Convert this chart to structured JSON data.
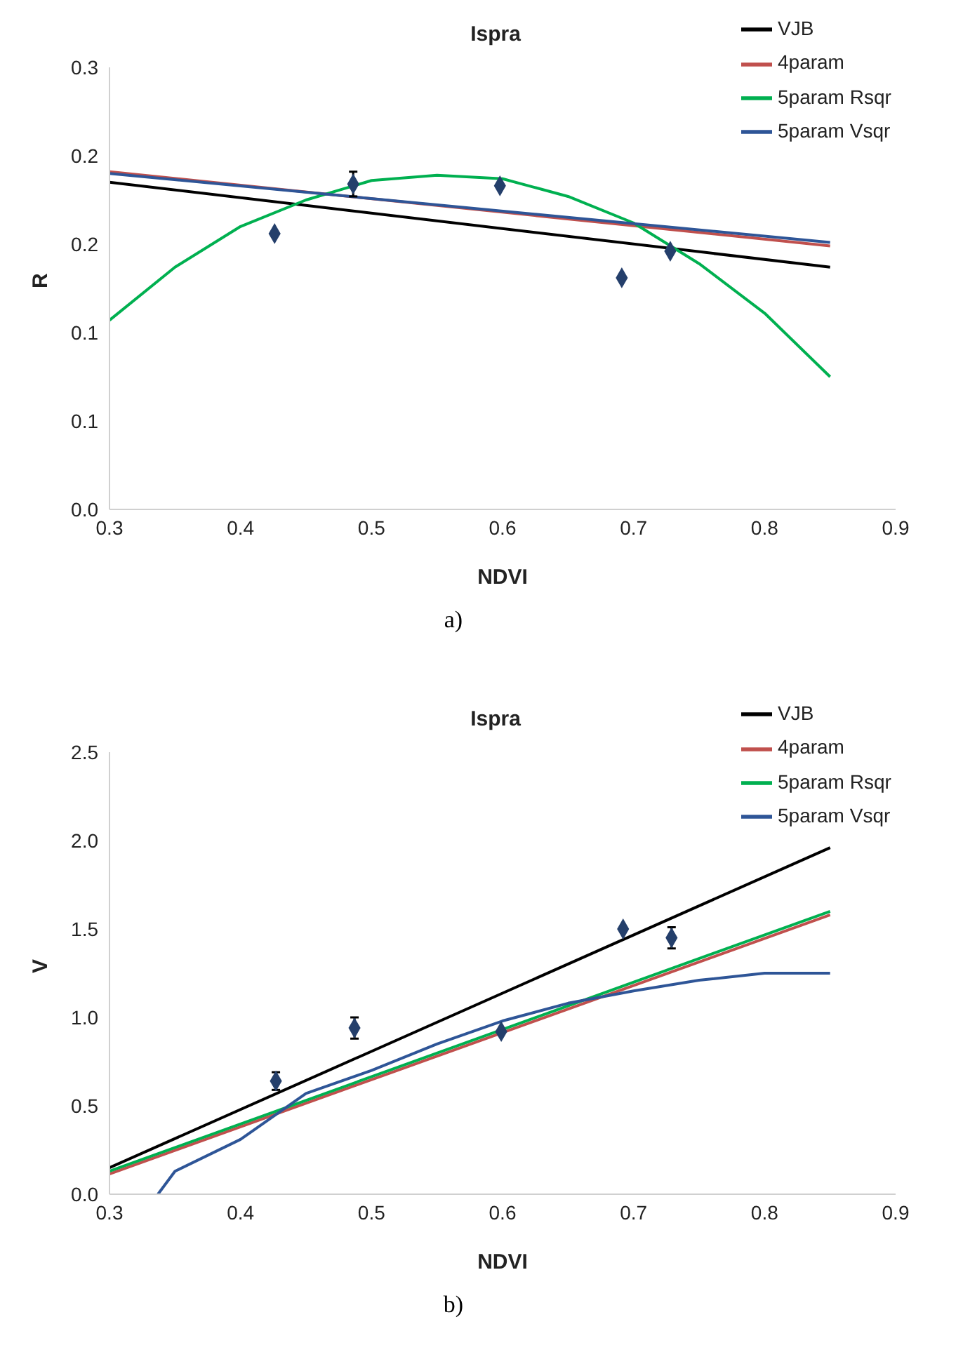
{
  "chart_data": [
    {
      "type": "line",
      "title": "Ispra",
      "xlabel": "NDVI",
      "ylabel": "R",
      "annotations": [
        "a)"
      ],
      "legend": "top right",
      "marker": "none",
      "xlim": [
        0.3,
        0.9
      ],
      "xticks": [
        0.3,
        0.4,
        0.5,
        0.6,
        0.7,
        0.8,
        0.9
      ],
      "ylim": [
        0,
        0.25
      ],
      "yticks": [
        {
          "value": 0,
          "label": "0.0"
        },
        {
          "value": 0.05,
          "label": "0.1"
        },
        {
          "value": 0.1,
          "label": "0.1"
        },
        {
          "value": 0.15,
          "label": "0.2"
        },
        {
          "value": 0.2,
          "label": "0.2"
        },
        {
          "value": 0.25,
          "label": "0.3"
        }
      ],
      "series": [
        {
          "name": "VJB",
          "color": "#000000",
          "x": [
            0.3,
            0.85
          ],
          "values": [
            0.185,
            0.137
          ]
        },
        {
          "name": "4param",
          "type": "line",
          "color": "#c0504d",
          "x": [
            0.3,
            0.85
          ],
          "values": [
            0.191,
            0.149
          ]
        },
        {
          "name": "5param Rsqr",
          "type": "line",
          "color": "#00b050",
          "x": [
            0.3,
            0.35,
            0.4,
            0.45,
            0.5,
            0.55,
            0.6,
            0.65,
            0.7,
            0.75,
            0.8,
            0.85
          ],
          "values": [
            0.107,
            0.137,
            0.16,
            0.175,
            0.186,
            0.189,
            0.187,
            0.177,
            0.162,
            0.139,
            0.111,
            0.075
          ]
        },
        {
          "name": "5param Vsqr",
          "type": "line",
          "color": "#2e5597",
          "x": [
            0.3,
            0.85
          ],
          "values": [
            0.19,
            0.151
          ]
        },
        {
          "type": "scatter",
          "color": "#243f6b",
          "marker": "diamond",
          "x": [
            0.426,
            0.486,
            0.598,
            0.691,
            0.728
          ],
          "values": [
            0.156,
            0.184,
            0.183,
            0.131,
            0.146
          ],
          "errors": [
            null,
            0.007,
            null,
            null,
            null
          ]
        }
      ]
    },
    {
      "type": "line",
      "title": "Ispra",
      "xlabel": "NDVI",
      "ylabel": "V",
      "annotations": [
        "b)"
      ],
      "legend": "top right",
      "marker": "none",
      "xlim": [
        0.3,
        0.9
      ],
      "xticks": [
        0.3,
        0.4,
        0.5,
        0.6,
        0.7,
        0.8,
        0.9
      ],
      "ylim": [
        0,
        2.5
      ],
      "yticks": [
        {
          "value": 0,
          "label": "0.0"
        },
        {
          "value": 0.5,
          "label": "0.5"
        },
        {
          "value": 1,
          "label": "1.0"
        },
        {
          "value": 1.5,
          "label": "1.5"
        },
        {
          "value": 2,
          "label": "2.0"
        },
        {
          "value": 2.5,
          "label": "2.5"
        }
      ],
      "series": [
        {
          "name": "VJB",
          "color": "#000000",
          "x": [
            0.3,
            0.85
          ],
          "values": [
            0.15,
            1.96
          ]
        },
        {
          "name": "4param",
          "color": "#c0504d",
          "x": [
            0.3,
            0.85
          ],
          "values": [
            0.115,
            1.58
          ]
        },
        {
          "name": "5param Rsqr",
          "type": "line",
          "color": "#00b050",
          "x": [
            0.3,
            0.85
          ],
          "values": [
            0.13,
            1.6
          ]
        },
        {
          "name": "5param Vsqr",
          "type": "line",
          "color": "#2e5597",
          "x": [
            0.337,
            0.35,
            0.4,
            0.45,
            0.5,
            0.55,
            0.6,
            0.65,
            0.7,
            0.75,
            0.8,
            0.85
          ],
          "values": [
            0,
            0.13,
            0.31,
            0.57,
            0.7,
            0.85,
            0.98,
            1.08,
            1.15,
            1.21,
            1.25,
            1.25
          ]
        },
        {
          "type": "scatter",
          "color": "#243f6b",
          "marker": "diamond",
          "x": [
            0.427,
            0.487,
            0.599,
            0.692,
            0.729
          ],
          "values": [
            0.64,
            0.94,
            0.92,
            1.5,
            1.45
          ],
          "errors": [
            0.05,
            0.06,
            null,
            null,
            0.06
          ]
        }
      ]
    }
  ]
}
